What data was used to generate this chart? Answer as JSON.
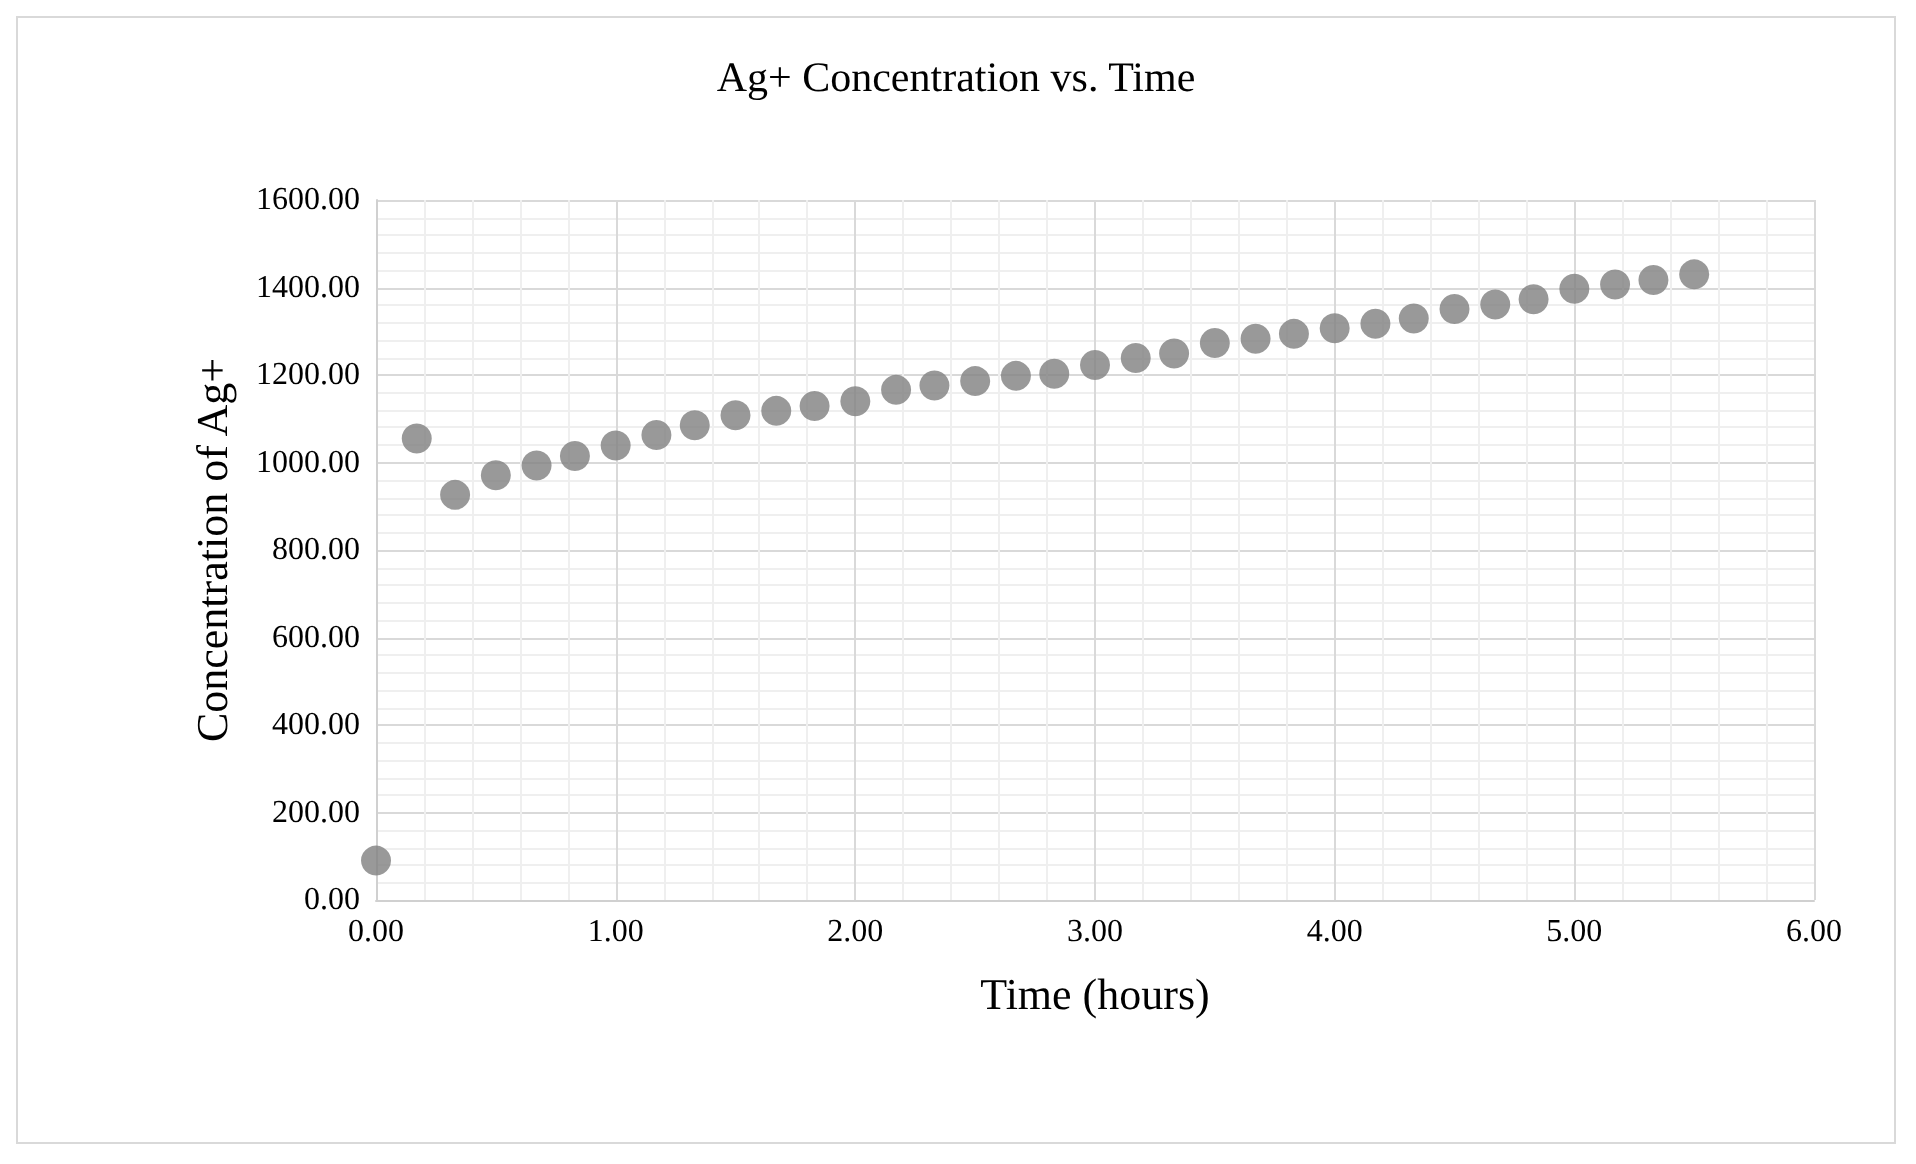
{
  "chart_data": {
    "type": "scatter",
    "title": "Ag+ Concentration vs. Time",
    "xlabel": "Time (hours)",
    "ylabel": "Concentration of Ag+",
    "x": [
      0,
      0.17,
      0.33,
      0.5,
      0.67,
      0.83,
      1.0,
      1.17,
      1.33,
      1.5,
      1.67,
      1.83,
      2.0,
      2.17,
      2.33,
      2.5,
      2.67,
      2.83,
      3.0,
      3.17,
      3.33,
      3.5,
      3.67,
      3.83,
      4.0,
      4.17,
      4.33,
      4.5,
      4.67,
      4.83,
      5.0,
      5.17,
      5.33,
      5.5
    ],
    "values": [
      90,
      1055,
      926,
      971,
      993,
      1015,
      1039,
      1063,
      1085,
      1108,
      1118,
      1129,
      1140,
      1166,
      1176,
      1186,
      1198,
      1203,
      1223,
      1239,
      1249,
      1273,
      1283,
      1294,
      1307,
      1317,
      1329,
      1351,
      1361,
      1373,
      1397,
      1407,
      1417,
      1430
    ],
    "color": "#808080",
    "marker": "circle",
    "grid": true,
    "xlim": [
      0,
      6
    ],
    "xticks": [
      {
        "value": 0,
        "label": "0.00"
      },
      {
        "value": 1,
        "label": "1.00"
      },
      {
        "value": 2,
        "label": "2.00"
      },
      {
        "value": 3,
        "label": "3.00"
      },
      {
        "value": 4,
        "label": "4.00"
      },
      {
        "value": 5,
        "label": "5.00"
      },
      {
        "value": 6,
        "label": "6.00"
      }
    ],
    "ylim": [
      0,
      1600
    ],
    "yticks": [
      {
        "value": 0,
        "label": "0.00"
      },
      {
        "value": 200,
        "label": "200.00"
      },
      {
        "value": 400,
        "label": "400.00"
      },
      {
        "value": 600,
        "label": "600.00"
      },
      {
        "value": 800,
        "label": "800.00"
      },
      {
        "value": 1000,
        "label": "1000.00"
      },
      {
        "value": 1200,
        "label": "1200.00"
      },
      {
        "value": 1400,
        "label": "1400.00"
      },
      {
        "value": 1600,
        "label": "1600.00"
      }
    ]
  }
}
